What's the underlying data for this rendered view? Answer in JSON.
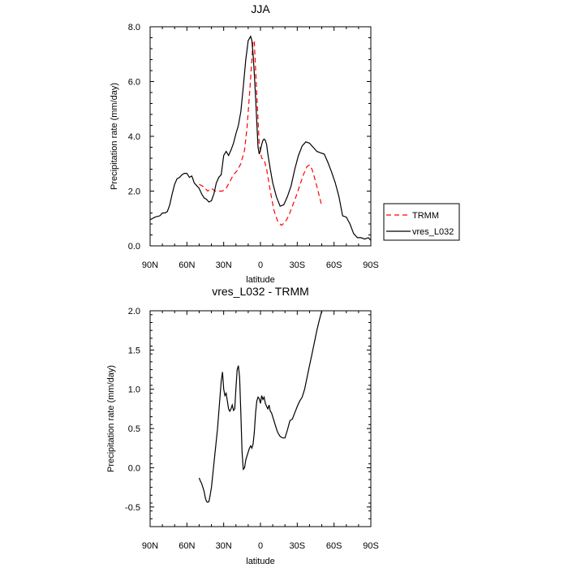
{
  "chart_data": [
    {
      "type": "line",
      "title": "JJA",
      "xlabel": "latitude",
      "ylabel": "Precipitation rate (mm/day)",
      "xlim": [
        90,
        -90
      ],
      "ylim": [
        0,
        8
      ],
      "xticks": [
        90,
        60,
        30,
        0,
        -30,
        -60,
        -90
      ],
      "xtick_labels": [
        "90N",
        "60N",
        "30N",
        "0",
        "30S",
        "60S",
        "90S"
      ],
      "yticks": [
        0,
        2,
        4,
        6,
        8
      ],
      "ytick_labels": [
        "0.0",
        "2.0",
        "4.0",
        "6.0",
        "8.0"
      ],
      "legend_position": "right",
      "series": [
        {
          "name": "TRMM",
          "color": "#ff0000",
          "style": "dashed",
          "x": [
            50,
            46,
            43,
            40,
            37,
            34,
            31,
            28,
            25,
            22,
            19,
            16,
            13,
            11,
            9,
            7,
            6,
            5,
            3,
            1,
            -1,
            -3,
            -5,
            -8,
            -11,
            -14,
            -17,
            -20,
            -23,
            -26,
            -29,
            -32,
            -35,
            -38,
            -40,
            -42,
            -44,
            -47,
            -50
          ],
          "y": [
            2.25,
            2.15,
            2.0,
            2.1,
            2.0,
            2.0,
            2.0,
            2.1,
            2.35,
            2.6,
            2.75,
            3.0,
            3.5,
            4.3,
            5.5,
            6.8,
            7.5,
            7.45,
            5.5,
            3.7,
            3.2,
            3.15,
            2.8,
            2.0,
            1.3,
            0.9,
            0.75,
            0.85,
            1.1,
            1.45,
            1.8,
            2.2,
            2.6,
            2.9,
            2.95,
            2.8,
            2.5,
            2.0,
            1.45
          ]
        },
        {
          "name": "vres_L032",
          "color": "#000000",
          "style": "solid",
          "x": [
            90,
            86,
            82,
            80,
            78,
            76,
            74,
            72,
            70,
            68,
            66,
            64,
            62,
            60,
            58,
            56,
            54,
            52,
            50,
            48,
            46,
            44,
            42,
            40,
            38,
            36,
            34,
            32,
            30,
            28,
            26,
            24,
            22,
            20,
            18,
            16,
            14,
            12,
            10,
            8,
            7,
            6,
            5,
            4,
            3,
            2,
            1,
            0,
            -1,
            -2,
            -3,
            -4,
            -5,
            -6,
            -8,
            -10,
            -13,
            -16,
            -19,
            -22,
            -25,
            -28,
            -31,
            -34,
            -37,
            -40,
            -43,
            -46,
            -49,
            -52,
            -55,
            -58,
            -61,
            -64,
            -67,
            -70,
            -73,
            -76,
            -79,
            -82,
            -85,
            -88,
            -90
          ],
          "y": [
            0.95,
            1.05,
            1.1,
            1.2,
            1.2,
            1.25,
            1.5,
            1.9,
            2.25,
            2.45,
            2.5,
            2.6,
            2.65,
            2.65,
            2.5,
            2.55,
            2.3,
            2.2,
            2.1,
            1.9,
            1.75,
            1.7,
            1.6,
            1.65,
            1.9,
            2.3,
            2.5,
            2.6,
            3.3,
            3.45,
            3.3,
            3.5,
            3.75,
            4.1,
            4.4,
            4.9,
            5.8,
            6.8,
            7.5,
            7.65,
            7.5,
            7.0,
            6.3,
            5.4,
            4.5,
            3.6,
            3.35,
            3.5,
            3.7,
            3.85,
            3.9,
            3.85,
            3.7,
            3.35,
            2.8,
            2.3,
            1.8,
            1.45,
            1.5,
            1.8,
            2.2,
            2.8,
            3.3,
            3.65,
            3.8,
            3.75,
            3.6,
            3.45,
            3.4,
            3.35,
            3.05,
            2.7,
            2.3,
            1.8,
            1.1,
            1.05,
            0.8,
            0.45,
            0.3,
            0.3,
            0.25,
            0.3,
            0.2
          ]
        }
      ]
    },
    {
      "type": "line",
      "title": "vres_L032 - TRMM",
      "xlabel": "latitude",
      "ylabel": "Precipitation rate (mm/day)",
      "xlim": [
        90,
        -90
      ],
      "ylim": [
        -0.75,
        2.0
      ],
      "xticks": [
        90,
        60,
        30,
        0,
        -30,
        -60,
        -90
      ],
      "xtick_labels": [
        "90N",
        "60N",
        "30N",
        "0",
        "30S",
        "60S",
        "90S"
      ],
      "yticks": [
        -0.5,
        0.0,
        0.5,
        1.0,
        1.5,
        2.0
      ],
      "ytick_labels": [
        "-0.5",
        "0.0",
        "0.5",
        "1.0",
        "1.5",
        "2.0"
      ],
      "series": [
        {
          "name": "vres_L032 - TRMM",
          "color": "#000000",
          "style": "solid",
          "x": [
            50,
            49,
            48,
            47,
            46,
            45,
            44,
            43,
            42,
            41,
            40,
            39,
            38,
            37,
            36,
            35,
            34,
            33,
            32,
            31,
            30,
            29,
            28,
            27,
            26,
            25,
            24,
            23,
            22,
            21,
            20,
            19,
            18,
            17,
            16,
            15,
            14,
            13,
            12,
            11,
            10,
            9,
            8,
            7,
            6,
            5,
            4,
            3,
            2,
            1,
            0,
            -1,
            -2,
            -3,
            -4,
            -5,
            -6,
            -7,
            -8,
            -9,
            -10,
            -11,
            -12,
            -13,
            -14,
            -16,
            -18,
            -20,
            -22,
            -24,
            -26,
            -28,
            -30,
            -32,
            -34,
            -36,
            -38,
            -40,
            -42,
            -44,
            -46,
            -48,
            -50
          ],
          "y": [
            -0.13,
            -0.17,
            -0.2,
            -0.25,
            -0.3,
            -0.38,
            -0.43,
            -0.44,
            -0.43,
            -0.35,
            -0.25,
            -0.1,
            0.05,
            0.2,
            0.35,
            0.5,
            0.7,
            0.9,
            1.1,
            1.22,
            1.0,
            0.92,
            0.95,
            0.85,
            0.75,
            0.72,
            0.75,
            0.8,
            0.73,
            0.75,
            1.02,
            1.25,
            1.3,
            1.15,
            0.7,
            0.2,
            -0.02,
            0.0,
            0.1,
            0.15,
            0.2,
            0.25,
            0.28,
            0.25,
            0.3,
            0.45,
            0.7,
            0.85,
            0.9,
            0.88,
            0.82,
            0.92,
            0.87,
            0.9,
            0.82,
            0.78,
            0.75,
            0.8,
            0.72,
            0.7,
            0.65,
            0.6,
            0.55,
            0.5,
            0.45,
            0.4,
            0.38,
            0.38,
            0.48,
            0.6,
            0.62,
            0.7,
            0.78,
            0.85,
            0.9,
            1.0,
            1.15,
            1.3,
            1.45,
            1.6,
            1.75,
            1.88,
            2.0
          ]
        }
      ]
    }
  ]
}
